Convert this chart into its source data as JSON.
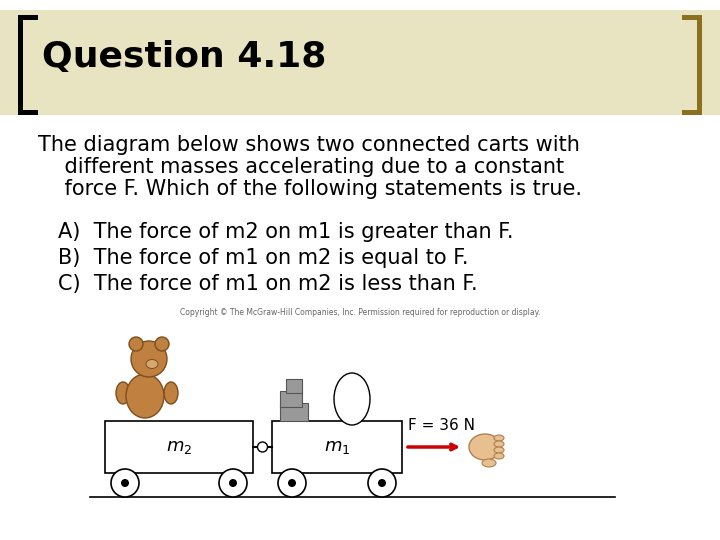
{
  "background_color": "#ffffff",
  "title": "Question 4.18",
  "title_fontsize": 26,
  "title_color": "#000000",
  "bracket_left_color": "#000000",
  "bracket_right_color": "#8B7020",
  "header_band_color": "#e8e3c0",
  "body_lines": [
    "The diagram below shows two connected carts with",
    "    different masses accelerating due to a constant",
    "    force F. Which of the following statements is true."
  ],
  "option_lines": [
    "A)  The force of m2 on m1 is greater than F.",
    "B)  The force of m1 on m2 is equal to F.",
    "C)  The force of m1 on m2 is less than F."
  ],
  "body_fontsize": 15,
  "copyright_text": "Copyright © The McGraw-Hill Companies, Inc. Permission required for reproduction or display.",
  "force_label": "F = 36 N",
  "cart2_label": "$m_2$",
  "cart1_label": "$m_1$",
  "arrow_color": "#cc0000",
  "bear_body_color": "#C08040",
  "bear_edge_color": "#7A5020",
  "hand_color": "#E8C090",
  "hand_edge_color": "#B08050",
  "cart_color": "#ffffff",
  "cart_edge_color": "#000000"
}
